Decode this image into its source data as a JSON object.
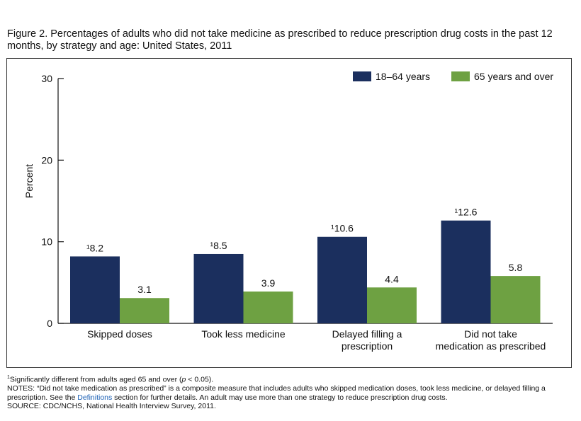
{
  "figure": {
    "title": "Figure 2. Percentages of adults who did not take medicine as prescribed to reduce prescription drug costs in the past 12 months, by strategy and age: United States, 2011"
  },
  "notes": {
    "footnote_marker": "1",
    "footnote_text": "Significantly different from adults aged 65 and over (",
    "footnote_p": "p",
    "footnote_tail": " < 0.05).",
    "notes_line_a": "NOTES: “Did not take medication as prescribed” is a composite measure that includes adults who skipped medication doses, took less medicine, or delayed filling a prescription. See the ",
    "notes_link": "Definitions",
    "notes_line_b": " section for further details. An adult may use more than one strategy to reduce prescription drug costs.",
    "source": "SOURCE: CDC/NCHS, National Health Interview Survey, 2011."
  },
  "chart_data": {
    "type": "bar",
    "categories": [
      [
        "Skipped doses"
      ],
      [
        "Took less medicine"
      ],
      [
        "Delayed filling a",
        "prescription"
      ],
      [
        "Did not take",
        "medication as prescribed"
      ]
    ],
    "series": [
      {
        "name": "18–64 years",
        "color": "#1b2f5e",
        "values": [
          8.2,
          8.5,
          10.6,
          12.6
        ],
        "labels": [
          "¹8.2",
          "¹8.5",
          "¹10.6",
          "¹12.6"
        ]
      },
      {
        "name": "65 years and over",
        "color": "#6ea142",
        "values": [
          3.1,
          3.9,
          4.4,
          5.8
        ],
        "labels": [
          "3.1",
          "3.9",
          "4.4",
          "5.8"
        ]
      }
    ],
    "ylabel": "Percent",
    "ylim": [
      0,
      30
    ],
    "yticks": [
      0,
      10,
      20,
      30
    ],
    "grid": false,
    "legend_position": "top-right"
  }
}
